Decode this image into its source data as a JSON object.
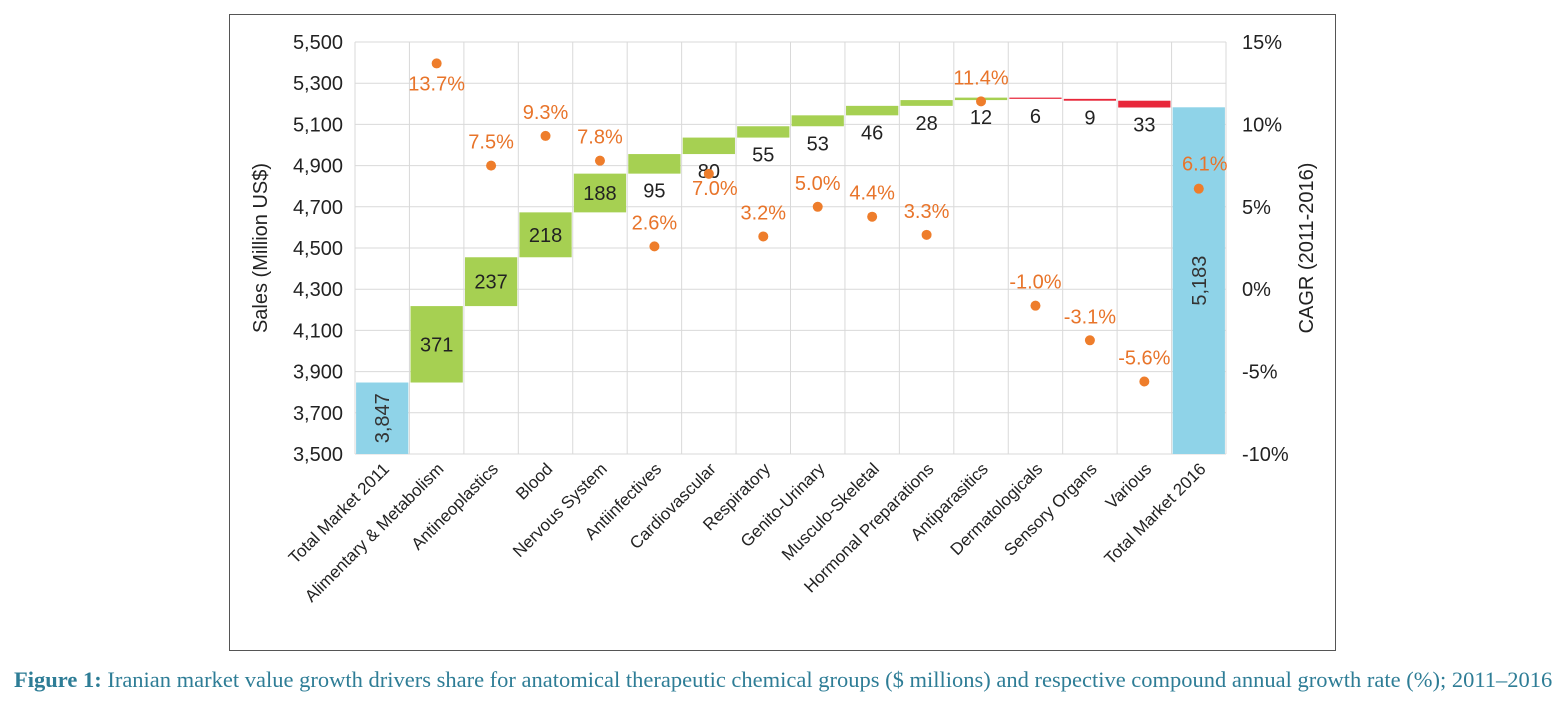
{
  "chart_data": {
    "type": "waterfall",
    "categories": [
      "Total Market 2011",
      "Alimentary & Metabolism",
      "Antineoplastics",
      "Blood",
      "Nervous System",
      "Antiinfectives",
      "Cardiovascular",
      "Respiratory",
      "Genito-Urinary",
      "Musculo-Skeletal",
      "Hormonal Preparations",
      "Antiparasitics",
      "Dermatologicals",
      "Sensory Organs",
      "Various",
      "Total Market 2016"
    ],
    "bar_values": [
      3847,
      371,
      237,
      218,
      188,
      95,
      80,
      55,
      53,
      46,
      28,
      12,
      6,
      9,
      33,
      5183
    ],
    "bar_labels": [
      "3,847",
      "371",
      "237",
      "218",
      "188",
      "95",
      "80",
      "55",
      "53",
      "46",
      "28",
      "12",
      "6",
      "9",
      "33",
      "5,183"
    ],
    "bar_kinds": [
      "total",
      "increase",
      "increase",
      "increase",
      "increase",
      "increase",
      "increase",
      "increase",
      "increase",
      "increase",
      "increase",
      "increase",
      "decrease",
      "decrease",
      "decrease",
      "total"
    ],
    "cagr_values": [
      null,
      13.7,
      7.5,
      9.3,
      7.8,
      2.6,
      7.0,
      3.2,
      5.0,
      4.4,
      3.3,
      11.4,
      -1.0,
      -3.1,
      -5.6,
      6.1
    ],
    "cagr_labels": [
      "",
      "13.7%",
      "7.5%",
      "9.3%",
      "7.8%",
      "2.6%",
      "7.0%",
      "3.2%",
      "5.0%",
      "4.4%",
      "3.3%",
      "11.4%",
      "-1.0%",
      "-3.1%",
      "-5.6%",
      "6.1%"
    ],
    "ylabel": "Sales (Million US$)",
    "y2label": "CAGR (2011-2016)",
    "ylim": [
      3500,
      5500
    ],
    "yticks": [
      3500,
      3700,
      3900,
      4100,
      4300,
      4500,
      4700,
      4900,
      5100,
      5300,
      5500
    ],
    "ytick_labels": [
      "3,500",
      "3,700",
      "3,900",
      "4,100",
      "4,300",
      "4,500",
      "4,700",
      "4,900",
      "5,100",
      "5,300",
      "5,500"
    ],
    "y2lim": [
      -10,
      15
    ],
    "y2ticks": [
      -10,
      -5,
      0,
      5,
      10,
      15
    ],
    "y2tick_labels": [
      "-10%",
      "-5%",
      "0%",
      "5%",
      "10%",
      "15%"
    ],
    "grid": "horizontal",
    "legend": "none",
    "colors": {
      "total": "#8fd3e8",
      "increase": "#a6d052",
      "decrease": "#e8273a",
      "marker": "#ee7d2b",
      "marker_label": "#e8742a",
      "grid": "#d9d9d9",
      "text": "#222222"
    }
  },
  "caption": {
    "bold": "Figure 1:",
    "text": "Iranian market value growth drivers share for anatomical therapeutic chemical groups ($ millions) and respective compound annual growth rate (%); 2011–2016"
  }
}
